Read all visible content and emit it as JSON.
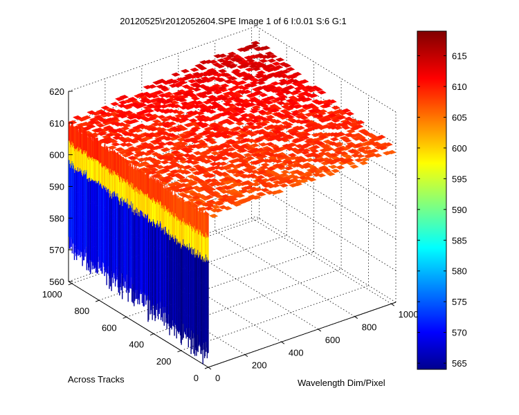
{
  "chart_data": {
    "type": "surface",
    "title": "20120525\\r2012052604.SPE  Image 1 of 6  I:0.01  S:6  G:1",
    "xlabel": "Wavelength Dim/Pixel",
    "ylabel": "Across Tracks",
    "zlabel": "",
    "xlim": [
      0,
      1024
    ],
    "ylim": [
      0,
      1024
    ],
    "zlim": [
      560,
      620
    ],
    "x_ticks": [
      0,
      200,
      400,
      600,
      800,
      1000
    ],
    "y_ticks": [
      0,
      200,
      400,
      600,
      800,
      1000
    ],
    "z_ticks": [
      560,
      570,
      580,
      590,
      600,
      610,
      620
    ],
    "colormap": "jet",
    "color_range": [
      564,
      619
    ],
    "colorbar_ticks": [
      565,
      570,
      575,
      580,
      585,
      590,
      595,
      600,
      605,
      610,
      615
    ],
    "grid": true,
    "surface": {
      "plateau_level": 610,
      "plateau_corner_levels": {
        "x0_y0": 608,
        "x1024_y0": 608,
        "x0_y1024": 610,
        "x1024_y1024": 615
      },
      "edge_x0_profile": {
        "description_free": true,
        "y": [
          0,
          200,
          400,
          600,
          800,
          1000
        ],
        "low_level": [
          566,
          567,
          569,
          571,
          572,
          573
        ],
        "high_level": [
          608,
          608,
          609,
          609,
          610,
          610
        ]
      }
    }
  }
}
